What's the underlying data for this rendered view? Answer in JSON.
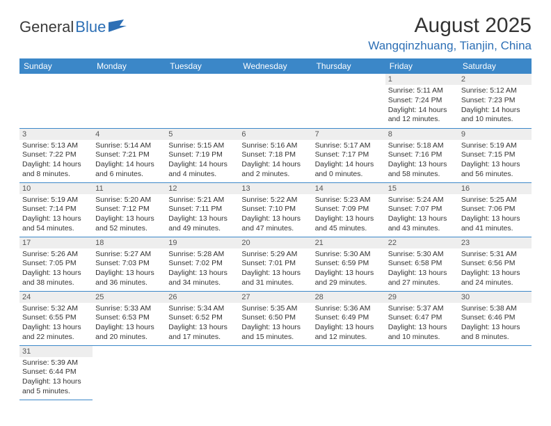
{
  "logo": {
    "text1": "General",
    "text2": "Blue"
  },
  "title": "August 2025",
  "location": "Wangqinzhuang, Tianjin, China",
  "colors": {
    "header_bg": "#3b87c8",
    "header_text": "#ffffff",
    "accent": "#2d6fb5",
    "daynum_bg": "#eeeeee",
    "border": "#3b87c8"
  },
  "weekdays": [
    "Sunday",
    "Monday",
    "Tuesday",
    "Wednesday",
    "Thursday",
    "Friday",
    "Saturday"
  ],
  "days": {
    "1": {
      "sunrise": "Sunrise: 5:11 AM",
      "sunset": "Sunset: 7:24 PM",
      "daylight": "Daylight: 14 hours and 12 minutes."
    },
    "2": {
      "sunrise": "Sunrise: 5:12 AM",
      "sunset": "Sunset: 7:23 PM",
      "daylight": "Daylight: 14 hours and 10 minutes."
    },
    "3": {
      "sunrise": "Sunrise: 5:13 AM",
      "sunset": "Sunset: 7:22 PM",
      "daylight": "Daylight: 14 hours and 8 minutes."
    },
    "4": {
      "sunrise": "Sunrise: 5:14 AM",
      "sunset": "Sunset: 7:21 PM",
      "daylight": "Daylight: 14 hours and 6 minutes."
    },
    "5": {
      "sunrise": "Sunrise: 5:15 AM",
      "sunset": "Sunset: 7:19 PM",
      "daylight": "Daylight: 14 hours and 4 minutes."
    },
    "6": {
      "sunrise": "Sunrise: 5:16 AM",
      "sunset": "Sunset: 7:18 PM",
      "daylight": "Daylight: 14 hours and 2 minutes."
    },
    "7": {
      "sunrise": "Sunrise: 5:17 AM",
      "sunset": "Sunset: 7:17 PM",
      "daylight": "Daylight: 14 hours and 0 minutes."
    },
    "8": {
      "sunrise": "Sunrise: 5:18 AM",
      "sunset": "Sunset: 7:16 PM",
      "daylight": "Daylight: 13 hours and 58 minutes."
    },
    "9": {
      "sunrise": "Sunrise: 5:19 AM",
      "sunset": "Sunset: 7:15 PM",
      "daylight": "Daylight: 13 hours and 56 minutes."
    },
    "10": {
      "sunrise": "Sunrise: 5:19 AM",
      "sunset": "Sunset: 7:14 PM",
      "daylight": "Daylight: 13 hours and 54 minutes."
    },
    "11": {
      "sunrise": "Sunrise: 5:20 AM",
      "sunset": "Sunset: 7:12 PM",
      "daylight": "Daylight: 13 hours and 52 minutes."
    },
    "12": {
      "sunrise": "Sunrise: 5:21 AM",
      "sunset": "Sunset: 7:11 PM",
      "daylight": "Daylight: 13 hours and 49 minutes."
    },
    "13": {
      "sunrise": "Sunrise: 5:22 AM",
      "sunset": "Sunset: 7:10 PM",
      "daylight": "Daylight: 13 hours and 47 minutes."
    },
    "14": {
      "sunrise": "Sunrise: 5:23 AM",
      "sunset": "Sunset: 7:09 PM",
      "daylight": "Daylight: 13 hours and 45 minutes."
    },
    "15": {
      "sunrise": "Sunrise: 5:24 AM",
      "sunset": "Sunset: 7:07 PM",
      "daylight": "Daylight: 13 hours and 43 minutes."
    },
    "16": {
      "sunrise": "Sunrise: 5:25 AM",
      "sunset": "Sunset: 7:06 PM",
      "daylight": "Daylight: 13 hours and 41 minutes."
    },
    "17": {
      "sunrise": "Sunrise: 5:26 AM",
      "sunset": "Sunset: 7:05 PM",
      "daylight": "Daylight: 13 hours and 38 minutes."
    },
    "18": {
      "sunrise": "Sunrise: 5:27 AM",
      "sunset": "Sunset: 7:03 PM",
      "daylight": "Daylight: 13 hours and 36 minutes."
    },
    "19": {
      "sunrise": "Sunrise: 5:28 AM",
      "sunset": "Sunset: 7:02 PM",
      "daylight": "Daylight: 13 hours and 34 minutes."
    },
    "20": {
      "sunrise": "Sunrise: 5:29 AM",
      "sunset": "Sunset: 7:01 PM",
      "daylight": "Daylight: 13 hours and 31 minutes."
    },
    "21": {
      "sunrise": "Sunrise: 5:30 AM",
      "sunset": "Sunset: 6:59 PM",
      "daylight": "Daylight: 13 hours and 29 minutes."
    },
    "22": {
      "sunrise": "Sunrise: 5:30 AM",
      "sunset": "Sunset: 6:58 PM",
      "daylight": "Daylight: 13 hours and 27 minutes."
    },
    "23": {
      "sunrise": "Sunrise: 5:31 AM",
      "sunset": "Sunset: 6:56 PM",
      "daylight": "Daylight: 13 hours and 24 minutes."
    },
    "24": {
      "sunrise": "Sunrise: 5:32 AM",
      "sunset": "Sunset: 6:55 PM",
      "daylight": "Daylight: 13 hours and 22 minutes."
    },
    "25": {
      "sunrise": "Sunrise: 5:33 AM",
      "sunset": "Sunset: 6:53 PM",
      "daylight": "Daylight: 13 hours and 20 minutes."
    },
    "26": {
      "sunrise": "Sunrise: 5:34 AM",
      "sunset": "Sunset: 6:52 PM",
      "daylight": "Daylight: 13 hours and 17 minutes."
    },
    "27": {
      "sunrise": "Sunrise: 5:35 AM",
      "sunset": "Sunset: 6:50 PM",
      "daylight": "Daylight: 13 hours and 15 minutes."
    },
    "28": {
      "sunrise": "Sunrise: 5:36 AM",
      "sunset": "Sunset: 6:49 PM",
      "daylight": "Daylight: 13 hours and 12 minutes."
    },
    "29": {
      "sunrise": "Sunrise: 5:37 AM",
      "sunset": "Sunset: 6:47 PM",
      "daylight": "Daylight: 13 hours and 10 minutes."
    },
    "30": {
      "sunrise": "Sunrise: 5:38 AM",
      "sunset": "Sunset: 6:46 PM",
      "daylight": "Daylight: 13 hours and 8 minutes."
    },
    "31": {
      "sunrise": "Sunrise: 5:39 AM",
      "sunset": "Sunset: 6:44 PM",
      "daylight": "Daylight: 13 hours and 5 minutes."
    }
  },
  "grid": [
    [
      null,
      null,
      null,
      null,
      null,
      "1",
      "2"
    ],
    [
      "3",
      "4",
      "5",
      "6",
      "7",
      "8",
      "9"
    ],
    [
      "10",
      "11",
      "12",
      "13",
      "14",
      "15",
      "16"
    ],
    [
      "17",
      "18",
      "19",
      "20",
      "21",
      "22",
      "23"
    ],
    [
      "24",
      "25",
      "26",
      "27",
      "28",
      "29",
      "30"
    ],
    [
      "31",
      null,
      null,
      null,
      null,
      null,
      null
    ]
  ]
}
